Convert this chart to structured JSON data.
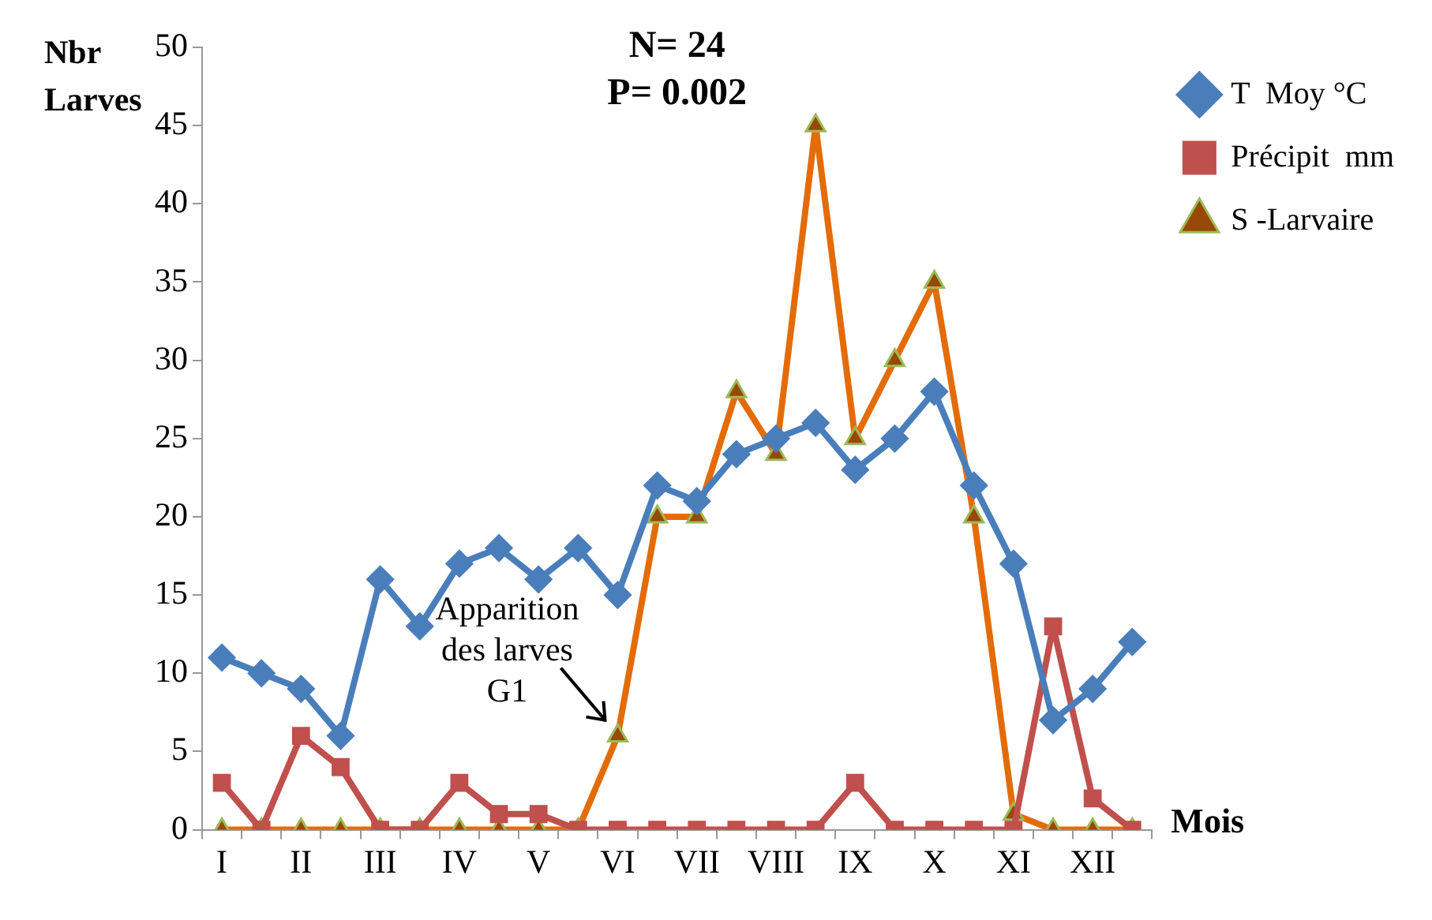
{
  "chart_data": {
    "type": "line",
    "title": "N= 24",
    "subtitle": "P= 0.002",
    "xlabel": "Mois",
    "ylabel": "Nbr Larves",
    "categories": [
      "I",
      null,
      "II",
      null,
      "III",
      null,
      "IV",
      null,
      "V",
      null,
      "VI",
      null,
      "VII",
      null,
      "VIII",
      null,
      "IX",
      null,
      "X",
      null,
      "XI",
      null,
      "XII",
      null
    ],
    "series": [
      {
        "name": "T  Moy °C",
        "color": "#4a7ebb",
        "marker": "diamond",
        "values": [
          11,
          10,
          9,
          6,
          16,
          13,
          17,
          18,
          16,
          18,
          15,
          22,
          21,
          24,
          25,
          26,
          23,
          25,
          28,
          22,
          17,
          7,
          9,
          12
        ]
      },
      {
        "name": "Précipit  mm",
        "color": "#c0504d",
        "marker": "square",
        "values": [
          3,
          0,
          6,
          4,
          0,
          0,
          3,
          1,
          1,
          0,
          0,
          0,
          0,
          0,
          0,
          0,
          3,
          0,
          0,
          0,
          0,
          13,
          2,
          0
        ]
      },
      {
        "name": "S -Larvaire",
        "color": "#e36c09",
        "marker": "triangle",
        "values": [
          0,
          0,
          0,
          0,
          0,
          0,
          0,
          0,
          0,
          0,
          6,
          20,
          20,
          28,
          24,
          45,
          25,
          30,
          35,
          20,
          1,
          0,
          0,
          0
        ]
      }
    ],
    "ylim": [
      0,
      50
    ],
    "yticks": [
      0,
      5,
      10,
      15,
      20,
      25,
      30,
      35,
      40,
      45,
      50
    ],
    "grid": false,
    "legend": "top right",
    "line_style": "solid",
    "annotations": [
      {
        "text": "Apparition des larves G1",
        "x": "VI",
        "y": 6
      }
    ]
  }
}
